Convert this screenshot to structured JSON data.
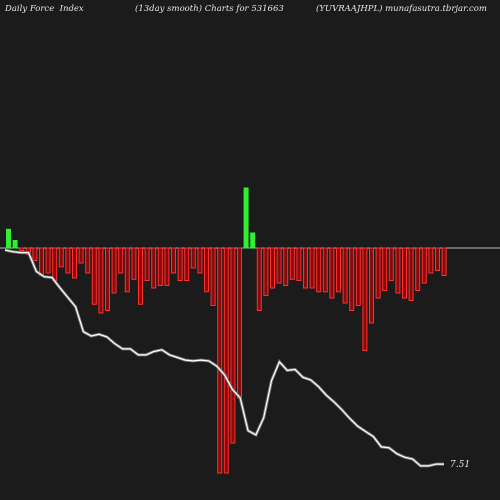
{
  "header": {
    "left": "Daily Force  Index",
    "middle": "(13day smooth) Charts for 531663",
    "right": "(YUVRAAJHPL) munafasutra.tbrjar.com"
  },
  "colors": {
    "background": "#1b1b1b",
    "positive_bar": "#33ee33",
    "negative_bar": "#ff3030",
    "negative_bar_fill": "#8a0a0a",
    "zero_line": "#bbbbbb",
    "price_line": "#ffffff"
  },
  "chart_data": {
    "type": "bar",
    "series": [
      {
        "values": [
          0.15,
          0.06,
          -0.02,
          -0.05,
          -0.1,
          -0.22,
          -0.2,
          -0.26,
          -0.15,
          -0.2,
          -0.24,
          -0.12,
          -0.2,
          -0.45,
          -0.52,
          -0.5,
          -0.36,
          -0.2,
          -0.35,
          -0.25,
          -0.45,
          -0.26,
          -0.32,
          -0.3,
          -0.3,
          -0.2,
          -0.26,
          -0.26,
          -0.16,
          -0.2,
          -0.35,
          -0.46,
          -1.8,
          -1.8,
          -1.56,
          -1.2,
          0.48,
          0.12,
          -0.5,
          -0.38,
          -0.32,
          -0.28,
          -0.3,
          -0.25,
          -0.26,
          -0.32,
          -0.32,
          -0.35,
          -0.35,
          -0.4,
          -0.35,
          -0.44,
          -0.5,
          -0.46,
          -0.82,
          -0.6,
          -0.4,
          -0.34,
          -0.26,
          -0.36,
          -0.4,
          -0.42,
          -0.34,
          -0.28,
          -0.2,
          -0.18,
          -0.22
        ]
      },
      {
        "values": [
          10.0,
          9.98,
          9.97,
          9.97,
          9.75,
          9.69,
          9.68,
          9.56,
          9.45,
          9.34,
          9.05,
          9.0,
          9.02,
          8.99,
          8.91,
          8.85,
          8.85,
          8.78,
          8.78,
          8.82,
          8.84,
          8.78,
          8.75,
          8.72,
          8.71,
          8.72,
          8.71,
          8.65,
          8.55,
          8.38,
          8.28,
          7.9,
          7.85,
          8.05,
          8.48,
          8.7,
          8.6,
          8.61,
          8.52,
          8.49,
          8.41,
          8.31,
          8.23,
          8.14,
          8.04,
          7.95,
          7.89,
          7.83,
          7.71,
          7.7,
          7.63,
          7.59,
          7.57,
          7.49,
          7.49,
          7.51,
          7.51
        ]
      }
    ],
    "last_value_label": "7.51"
  }
}
